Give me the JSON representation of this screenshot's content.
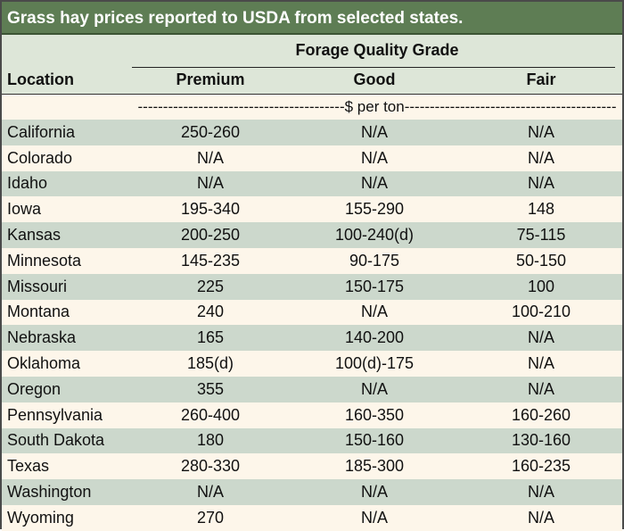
{
  "title": "Grass hay prices reported to USDA from selected states.",
  "header": {
    "group_label": "Forage Quality Grade",
    "location": "Location",
    "premium": "Premium",
    "good": "Good",
    "fair": "Fair"
  },
  "units": "-----------------------------------------$ per ton------------------------------------------",
  "rows": [
    {
      "location": "California",
      "premium": "250-260",
      "good": "N/A",
      "fair": "N/A"
    },
    {
      "location": "Colorado",
      "premium": "N/A",
      "good": "N/A",
      "fair": "N/A"
    },
    {
      "location": "Idaho",
      "premium": "N/A",
      "good": "N/A",
      "fair": "N/A"
    },
    {
      "location": "Iowa",
      "premium": "195-340",
      "good": "155-290",
      "fair": "148"
    },
    {
      "location": "Kansas",
      "premium": "200-250",
      "good": "100-240(d)",
      "fair": "75-115"
    },
    {
      "location": "Minnesota",
      "premium": "145-235",
      "good": "90-175",
      "fair": "50-150"
    },
    {
      "location": "Missouri",
      "premium": "225",
      "good": "150-175",
      "fair": "100"
    },
    {
      "location": "Montana",
      "premium": "240",
      "good": "N/A",
      "fair": "100-210"
    },
    {
      "location": "Nebraska",
      "premium": "165",
      "good": "140-200",
      "fair": "N/A"
    },
    {
      "location": "Oklahoma",
      "premium": "185(d)",
      "good": "100(d)-175",
      "fair": "N/A"
    },
    {
      "location": "Oregon",
      "premium": "355",
      "good": "N/A",
      "fair": "N/A"
    },
    {
      "location": "Pennsylvania",
      "premium": "260-400",
      "good": "160-350",
      "fair": "160-260"
    },
    {
      "location": "South Dakota",
      "premium": "180",
      "good": "150-160",
      "fair": "130-160"
    },
    {
      "location": "Texas",
      "premium": "280-330",
      "good": "185-300",
      "fair": "160-235"
    },
    {
      "location": "Washington",
      "premium": "N/A",
      "good": "N/A",
      "fair": "N/A"
    },
    {
      "location": "Wyoming",
      "premium": "270",
      "good": "N/A",
      "fair": "N/A"
    }
  ]
}
